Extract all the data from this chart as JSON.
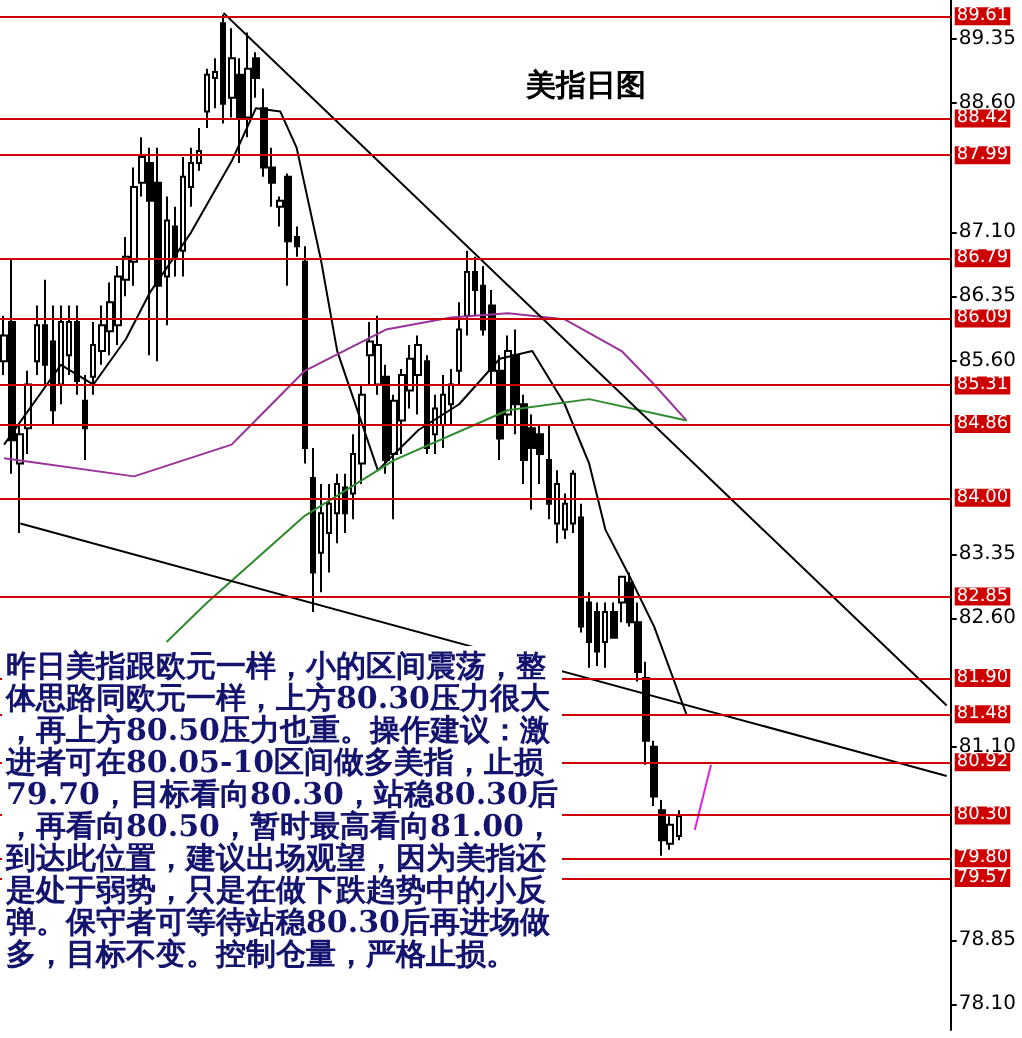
{
  "chart_data": {
    "type": "candlestick",
    "title": "美指日图",
    "annotations": [
      "昨日美指跟欧元一样，小的区间震荡，整体思路同欧元一样，上方80.30压力很大，再上方80.50压力也重。操作建议：激进者可在80.05-10区间做多美指，止损79.70，目标看向80.30，站稳80.30后，再看向80.50，暂时最高看向81.00，到达此位置，建议出场观望，因为美指还是处于弱势，只是在做下跌趋势中的小反弹。保守者可等待站稳80.30后再进场做多，目标不变。控制仓量，严格止损。"
    ],
    "categories": [
      null,
      null,
      null,
      null,
      null,
      null,
      null,
      null,
      null,
      null,
      null,
      null,
      null,
      null,
      null,
      null,
      null,
      null,
      null,
      null,
      null,
      null,
      null,
      null,
      null,
      null,
      null,
      null,
      null,
      null,
      null,
      null,
      null,
      null,
      null,
      null,
      null,
      null,
      null,
      null,
      null,
      null,
      null,
      null,
      null,
      null,
      null,
      null,
      null,
      null,
      null,
      null,
      null,
      null,
      null,
      null,
      null,
      null,
      null,
      null,
      null,
      null,
      null,
      null,
      null,
      null,
      null,
      null,
      null,
      null,
      null,
      null,
      null,
      null,
      null,
      null,
      null,
      null,
      null,
      null,
      null,
      null,
      null,
      null,
      null,
      null,
      null,
      null,
      null,
      null,
      null,
      null,
      null,
      null,
      null,
      null,
      null,
      null,
      null,
      null,
      null,
      null,
      null,
      null,
      null,
      null,
      null,
      null,
      null,
      null,
      null,
      null,
      null,
      null,
      null,
      null,
      null
    ],
    "ohlc": [
      [
        85.59,
        86.12,
        85.43,
        85.89
      ],
      [
        86.05,
        86.77,
        84.28,
        84.67
      ],
      [
        84.4,
        84.85,
        83.59,
        84.74
      ],
      [
        84.81,
        85.48,
        84.51,
        85.32
      ],
      [
        85.59,
        86.24,
        85.43,
        86.01
      ],
      [
        86.01,
        86.54,
        85.32,
        85.55
      ],
      [
        85.82,
        86.24,
        84.85,
        85.02
      ],
      [
        85.32,
        86.24,
        85.09,
        86.05
      ],
      [
        85.66,
        86.24,
        85.43,
        86.05
      ],
      [
        86.05,
        86.24,
        85.2,
        85.36
      ],
      [
        85.13,
        85.43,
        84.44,
        84.81
      ],
      [
        85.41,
        86.05,
        85.2,
        85.78
      ],
      [
        85.71,
        86.24,
        85.55,
        86.01
      ],
      [
        85.94,
        86.51,
        85.66,
        86.28
      ],
      [
        86.01,
        86.7,
        85.78,
        86.58
      ],
      [
        86.54,
        87.04,
        86.35,
        86.81
      ],
      [
        86.75,
        87.85,
        86.47,
        87.62
      ],
      [
        87.67,
        88.2,
        87.51,
        87.97
      ],
      [
        87.9,
        88.08,
        85.66,
        87.46
      ],
      [
        87.67,
        88.08,
        85.59,
        86.47
      ],
      [
        86.58,
        87.51,
        86.01,
        87.23
      ],
      [
        87.16,
        87.39,
        86.58,
        86.81
      ],
      [
        86.88,
        87.97,
        86.58,
        87.74
      ],
      [
        87.62,
        88.08,
        87.39,
        87.9
      ],
      [
        87.9,
        88.31,
        87.81,
        88.04
      ],
      [
        88.5,
        89.0,
        88.31,
        88.93
      ],
      [
        88.89,
        89.12,
        88.54,
        88.96
      ],
      [
        89.53,
        89.63,
        88.36,
        88.59
      ],
      [
        88.66,
        89.47,
        88.43,
        89.12
      ],
      [
        88.93,
        89.12,
        87.9,
        88.43
      ],
      [
        88.43,
        89.42,
        88.2,
        89.0
      ],
      [
        89.12,
        89.19,
        88.66,
        88.89
      ],
      [
        88.54,
        88.77,
        87.74,
        87.85
      ],
      [
        87.85,
        88.08,
        87.39,
        87.67
      ],
      [
        87.39,
        87.51,
        87.16,
        87.46
      ],
      [
        87.74,
        87.78,
        86.47,
        86.99
      ],
      [
        87.04,
        87.16,
        86.81,
        86.93
      ],
      [
        86.75,
        86.93,
        84.4,
        84.58
      ],
      [
        84.23,
        84.58,
        82.67,
        83.13
      ],
      [
        83.36,
        84.16,
        82.9,
        83.82
      ],
      [
        83.59,
        84.16,
        83.13,
        83.93
      ],
      [
        83.82,
        84.28,
        83.47,
        84.16
      ],
      [
        84.12,
        84.28,
        83.59,
        83.82
      ],
      [
        84.05,
        84.74,
        83.75,
        84.51
      ],
      [
        84.4,
        85.32,
        84.16,
        85.2
      ],
      [
        85.66,
        86.05,
        85.32,
        85.82
      ],
      [
        85.32,
        86.12,
        85.2,
        85.78
      ],
      [
        85.41,
        85.55,
        84.28,
        84.44
      ],
      [
        84.51,
        85.2,
        83.75,
        85.13
      ],
      [
        84.9,
        85.5,
        84.51,
        85.43
      ],
      [
        85.25,
        85.78,
        85.04,
        85.62
      ],
      [
        85.43,
        85.89,
        84.97,
        85.78
      ],
      [
        85.59,
        85.66,
        84.51,
        84.58
      ],
      [
        84.74,
        85.2,
        84.51,
        85.04
      ],
      [
        84.85,
        85.43,
        84.58,
        85.2
      ],
      [
        85.09,
        85.5,
        84.85,
        85.32
      ],
      [
        85.48,
        86.28,
        85.32,
        85.96
      ],
      [
        86.12,
        86.88,
        85.89,
        86.63
      ],
      [
        86.63,
        86.81,
        86.12,
        86.42
      ],
      [
        86.47,
        86.7,
        85.89,
        85.96
      ],
      [
        86.24,
        86.42,
        85.32,
        85.48
      ],
      [
        85.48,
        85.66,
        84.44,
        84.69
      ],
      [
        84.97,
        85.89,
        84.85,
        85.71
      ],
      [
        85.66,
        85.96,
        84.74,
        85.09
      ],
      [
        85.09,
        85.2,
        84.16,
        84.44
      ],
      [
        84.81,
        84.97,
        83.86,
        84.58
      ],
      [
        84.74,
        84.85,
        84.16,
        84.51
      ],
      [
        84.44,
        84.85,
        83.75,
        83.93
      ],
      [
        83.7,
        84.32,
        83.47,
        84.16
      ],
      [
        83.63,
        84.05,
        83.52,
        83.93
      ],
      [
        83.7,
        84.32,
        83.59,
        84.28
      ],
      [
        83.77,
        83.93,
        82.43,
        82.5
      ],
      [
        82.78,
        82.9,
        82.02,
        82.32
      ],
      [
        82.67,
        82.78,
        82.04,
        82.21
      ],
      [
        82.32,
        82.78,
        82.02,
        82.67
      ],
      [
        82.67,
        82.78,
        82.37,
        82.37
      ],
      [
        82.78,
        83.08,
        82.55,
        83.08
      ],
      [
        83.01,
        83.13,
        82.5,
        82.55
      ],
      [
        82.55,
        82.78,
        81.86,
        81.97
      ],
      [
        81.9,
        82.09,
        80.89,
        81.17
      ],
      [
        81.1,
        81.17,
        80.41,
        80.52
      ],
      [
        80.36,
        80.48,
        79.83,
        80.01
      ],
      [
        79.97,
        80.29,
        79.9,
        80.19
      ],
      [
        80.06,
        80.36,
        80.01,
        80.29
      ],
      null,
      null,
      null,
      null,
      null,
      null,
      null,
      null,
      null,
      null,
      null,
      null,
      null,
      null,
      null,
      null,
      null,
      null,
      null,
      null,
      null,
      null,
      null,
      null,
      null,
      null,
      null,
      null,
      null,
      null,
      null,
      null,
      null
    ],
    "series": [
      {
        "type": "line",
        "color": "#000000",
        "values": [
          84.62,
          null,
          null,
          null,
          null,
          null,
          null,
          85.55,
          null,
          null,
          null,
          85.32,
          null,
          null,
          null,
          85.85,
          null,
          null,
          86.4,
          null,
          null,
          null,
          null,
          87.09,
          null,
          null,
          null,
          null,
          87.92,
          null,
          null,
          88.54,
          null,
          null,
          88.5,
          null,
          88.08,
          null,
          null,
          86.77,
          null,
          85.71,
          null,
          null,
          null,
          null,
          84.32,
          null,
          null,
          null,
          null,
          84.79,
          null,
          null,
          null,
          null,
          85.09,
          null,
          null,
          null,
          null,
          85.62,
          null,
          null,
          null,
          85.71,
          null,
          null,
          null,
          85.09,
          null,
          null,
          84.4,
          null,
          83.63,
          null,
          null,
          83.08,
          null,
          null,
          82.5,
          null,
          null,
          null,
          81.47,
          null,
          null,
          null,
          null,
          null,
          null,
          null,
          null,
          null,
          null,
          null,
          null,
          null,
          null,
          null,
          null,
          null,
          null,
          null,
          null,
          null,
          null,
          null,
          null,
          null,
          null,
          null,
          null,
          null,
          null,
          null,
          null
        ]
      },
      {
        "type": "line",
        "color": "#993399",
        "values": [
          84.46,
          null,
          null,
          null,
          null,
          null,
          null,
          null,
          null,
          null,
          null,
          null,
          null,
          null,
          null,
          null,
          84.25,
          null,
          null,
          null,
          null,
          null,
          null,
          null,
          null,
          null,
          null,
          null,
          84.62,
          null,
          null,
          null,
          null,
          null,
          null,
          null,
          null,
          85.48,
          null,
          null,
          null,
          null,
          null,
          null,
          null,
          null,
          null,
          85.96,
          null,
          null,
          null,
          null,
          null,
          null,
          null,
          86.1,
          null,
          null,
          null,
          null,
          null,
          null,
          86.15,
          null,
          null,
          null,
          null,
          null,
          null,
          86.08,
          null,
          null,
          null,
          null,
          null,
          null,
          85.71,
          null,
          null,
          null,
          85.32,
          null,
          null,
          null,
          84.9,
          null,
          null,
          null,
          null,
          null,
          null,
          null,
          null,
          null,
          null,
          null,
          null,
          null,
          null,
          null,
          null,
          null,
          null,
          null,
          null,
          null,
          null,
          null,
          null,
          null,
          null,
          null,
          null,
          null,
          null,
          null,
          null
        ]
      },
      {
        "type": "line",
        "color": "#2e8b2e",
        "values": [
          null,
          null,
          null,
          null,
          null,
          null,
          null,
          null,
          null,
          null,
          null,
          null,
          null,
          null,
          null,
          null,
          null,
          null,
          null,
          null,
          82.32,
          null,
          null,
          null,
          null,
          82.78,
          null,
          null,
          null,
          null,
          null,
          null,
          null,
          null,
          null,
          null,
          null,
          83.79,
          null,
          null,
          null,
          null,
          null,
          null,
          null,
          null,
          null,
          null,
          84.44,
          null,
          null,
          null,
          null,
          null,
          null,
          null,
          null,
          null,
          null,
          null,
          null,
          null,
          85.02,
          null,
          null,
          null,
          null,
          null,
          null,
          null,
          null,
          null,
          85.15,
          null,
          null,
          null,
          null,
          null,
          null,
          null,
          null,
          null,
          null,
          null,
          84.9,
          null,
          null,
          null,
          null,
          null,
          null,
          null,
          null,
          null,
          null,
          null,
          null,
          null,
          null,
          null,
          null,
          null,
          null,
          null,
          null,
          null,
          null,
          null,
          null,
          null,
          null,
          null,
          null,
          null,
          null,
          null,
          null
        ]
      },
      {
        "type": "line",
        "color": "#e020e0",
        "values": [
          null,
          null,
          null,
          null,
          null,
          null,
          null,
          null,
          null,
          null,
          null,
          null,
          null,
          null,
          null,
          null,
          null,
          null,
          null,
          null,
          null,
          null,
          null,
          null,
          null,
          null,
          null,
          null,
          null,
          null,
          null,
          null,
          null,
          null,
          null,
          null,
          null,
          null,
          null,
          null,
          null,
          null,
          null,
          null,
          null,
          null,
          null,
          null,
          null,
          null,
          null,
          null,
          null,
          null,
          null,
          null,
          null,
          null,
          null,
          null,
          null,
          null,
          null,
          null,
          null,
          null,
          null,
          null,
          null,
          null,
          null,
          null,
          null,
          null,
          null,
          null,
          null,
          null,
          null,
          null,
          null,
          null,
          null,
          null,
          null,
          80.13,
          null,
          80.89,
          null,
          null,
          null,
          null,
          null,
          null,
          null,
          null,
          null,
          null,
          null,
          null,
          null,
          null,
          null,
          null,
          null,
          null,
          null,
          null,
          null,
          null,
          null,
          null,
          null,
          null,
          null,
          null,
          null
        ]
      },
      {
        "type": "line",
        "color": "#000000",
        "values": [
          null,
          null,
          null,
          null,
          null,
          null,
          null,
          null,
          null,
          null,
          null,
          null,
          null,
          null,
          null,
          null,
          null,
          null,
          null,
          null,
          null,
          null,
          null,
          null,
          null,
          null,
          null,
          89.65,
          null,
          null,
          null,
          null,
          null,
          null,
          null,
          null,
          null,
          null,
          null,
          null,
          null,
          null,
          null,
          null,
          null,
          null,
          null,
          null,
          null,
          null,
          null,
          null,
          null,
          null,
          null,
          null,
          null,
          null,
          null,
          null,
          null,
          null,
          null,
          null,
          null,
          null,
          null,
          null,
          null,
          null,
          null,
          null,
          null,
          null,
          null,
          null,
          null,
          null,
          null,
          null,
          null,
          null,
          null,
          null,
          null,
          null,
          null,
          null,
          null,
          null,
          null,
          null,
          null,
          null,
          null,
          null,
          null,
          null,
          null,
          null,
          null,
          null,
          null,
          null,
          null,
          null,
          null,
          null,
          null,
          null,
          null,
          null,
          null,
          null,
          null,
          null,
          81.58
        ]
      },
      {
        "type": "line",
        "color": "#000000",
        "values": [
          null,
          null,
          83.7,
          null,
          null,
          null,
          null,
          null,
          null,
          null,
          null,
          null,
          null,
          null,
          null,
          null,
          null,
          null,
          null,
          null,
          null,
          null,
          null,
          null,
          null,
          null,
          null,
          null,
          null,
          null,
          null,
          null,
          null,
          null,
          null,
          null,
          null,
          null,
          null,
          null,
          null,
          null,
          null,
          null,
          null,
          null,
          null,
          null,
          null,
          null,
          null,
          null,
          null,
          null,
          null,
          null,
          null,
          null,
          null,
          null,
          null,
          null,
          null,
          null,
          null,
          null,
          null,
          null,
          null,
          null,
          null,
          null,
          null,
          null,
          null,
          null,
          null,
          null,
          null,
          null,
          null,
          null,
          null,
          null,
          null,
          null,
          null,
          null,
          null,
          null,
          null,
          null,
          null,
          null,
          null,
          null,
          null,
          null,
          null,
          null,
          null,
          null,
          null,
          null,
          null,
          null,
          null,
          null,
          null,
          null,
          null,
          null,
          null,
          null,
          null,
          null,
          80.76
        ]
      }
    ],
    "ylim": [
      77.8,
      89.8
    ],
    "yticks": [
      {
        "value": 78.1,
        "label": "78.10"
      },
      {
        "value": 78.85,
        "label": "78.85"
      },
      {
        "value": 81.1,
        "label": "81.10"
      },
      {
        "value": 82.6,
        "label": "82.60"
      },
      {
        "value": 83.35,
        "label": "83.35"
      },
      {
        "value": 85.6,
        "label": "85.60"
      },
      {
        "value": 86.35,
        "label": "86.35"
      },
      {
        "value": 87.1,
        "label": "87.10"
      },
      {
        "value": 88.6,
        "label": "88.60"
      },
      {
        "value": 89.35,
        "label": "89.35"
      }
    ],
    "ref_lines": [
      {
        "axis": "y",
        "value": 89.61,
        "label": "89.61",
        "color": "#cc0000"
      },
      {
        "axis": "y",
        "value": 88.42,
        "label": "88.42",
        "color": "#cc0000"
      },
      {
        "axis": "y",
        "value": 87.99,
        "label": "87.99",
        "color": "#cc0000"
      },
      {
        "axis": "y",
        "value": 86.79,
        "label": "86.79",
        "color": "#cc0000"
      },
      {
        "axis": "y",
        "value": 86.09,
        "label": "86.09",
        "color": "#cc0000"
      },
      {
        "axis": "y",
        "value": 85.31,
        "label": "85.31",
        "color": "#cc0000"
      },
      {
        "axis": "y",
        "value": 84.86,
        "label": "84.86",
        "color": "#cc0000"
      },
      {
        "axis": "y",
        "value": 84.0,
        "label": "84.00",
        "color": "#cc0000"
      },
      {
        "axis": "y",
        "value": 82.85,
        "label": "82.85",
        "color": "#cc0000"
      },
      {
        "axis": "y",
        "value": 81.9,
        "label": "81.90",
        "color": "#cc0000"
      },
      {
        "axis": "y",
        "value": 81.48,
        "label": "81.48",
        "color": "#cc0000"
      },
      {
        "axis": "y",
        "value": 80.92,
        "label": "80.92",
        "color": "#cc0000"
      },
      {
        "axis": "y",
        "value": 80.3,
        "label": "80.30",
        "color": "#cc0000"
      },
      {
        "axis": "y",
        "value": 79.8,
        "label": "79.80",
        "color": "#cc0000"
      },
      {
        "axis": "y",
        "value": 79.57,
        "label": "79.57",
        "color": "#cc0000"
      }
    ]
  }
}
